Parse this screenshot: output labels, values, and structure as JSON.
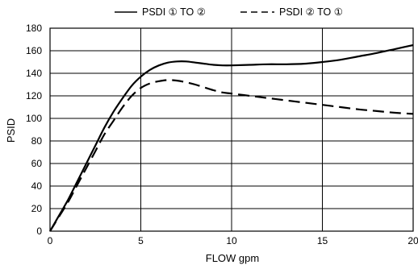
{
  "chart_data": {
    "type": "line",
    "xlabel": "FLOW gpm",
    "ylabel": "PSID",
    "xlim": [
      0,
      20
    ],
    "ylim": [
      0,
      180
    ],
    "x_ticks": [
      0,
      5,
      10,
      15,
      20
    ],
    "y_ticks": [
      0,
      20,
      40,
      60,
      80,
      100,
      120,
      140,
      160,
      180
    ],
    "grid": true,
    "legend_position": "top",
    "series": [
      {
        "name": "PSDI ① TO ②",
        "line_style": "solid",
        "color": "#000000",
        "points": [
          [
            0,
            0
          ],
          [
            0.5,
            14
          ],
          [
            1,
            28
          ],
          [
            1.5,
            44
          ],
          [
            2,
            60
          ],
          [
            2.5,
            76
          ],
          [
            3,
            92
          ],
          [
            3.5,
            106
          ],
          [
            4,
            118
          ],
          [
            4.5,
            129
          ],
          [
            5,
            137
          ],
          [
            5.5,
            143
          ],
          [
            6,
            147
          ],
          [
            6.5,
            149.5
          ],
          [
            7,
            150.5
          ],
          [
            7.5,
            150.5
          ],
          [
            8,
            149.5
          ],
          [
            8.5,
            148.5
          ],
          [
            9,
            147.5
          ],
          [
            9.5,
            147
          ],
          [
            10,
            147
          ],
          [
            11,
            147.5
          ],
          [
            12,
            148
          ],
          [
            13,
            148
          ],
          [
            14,
            148.5
          ],
          [
            15,
            150
          ],
          [
            16,
            152
          ],
          [
            17,
            155
          ],
          [
            18,
            158
          ],
          [
            19,
            161.5
          ],
          [
            20,
            165
          ]
        ]
      },
      {
        "name": "PSDI ② TO ①",
        "line_style": "dashed",
        "color": "#000000",
        "points": [
          [
            0,
            0
          ],
          [
            0.5,
            13
          ],
          [
            1,
            26
          ],
          [
            1.5,
            41
          ],
          [
            2,
            56
          ],
          [
            2.5,
            71
          ],
          [
            3,
            86
          ],
          [
            3.5,
            98
          ],
          [
            4,
            110
          ],
          [
            4.5,
            120
          ],
          [
            5,
            127
          ],
          [
            5.5,
            131
          ],
          [
            6,
            133
          ],
          [
            6.5,
            134
          ],
          [
            7,
            133.5
          ],
          [
            7.5,
            132
          ],
          [
            8,
            130
          ],
          [
            8.5,
            127.5
          ],
          [
            9,
            125
          ],
          [
            9.5,
            123
          ],
          [
            10,
            122
          ],
          [
            11,
            120
          ],
          [
            12,
            118
          ],
          [
            13,
            116
          ],
          [
            14,
            114
          ],
          [
            15,
            112
          ],
          [
            16,
            110
          ],
          [
            17,
            108
          ],
          [
            18,
            106.5
          ],
          [
            19,
            105
          ],
          [
            20,
            104
          ]
        ]
      }
    ]
  }
}
